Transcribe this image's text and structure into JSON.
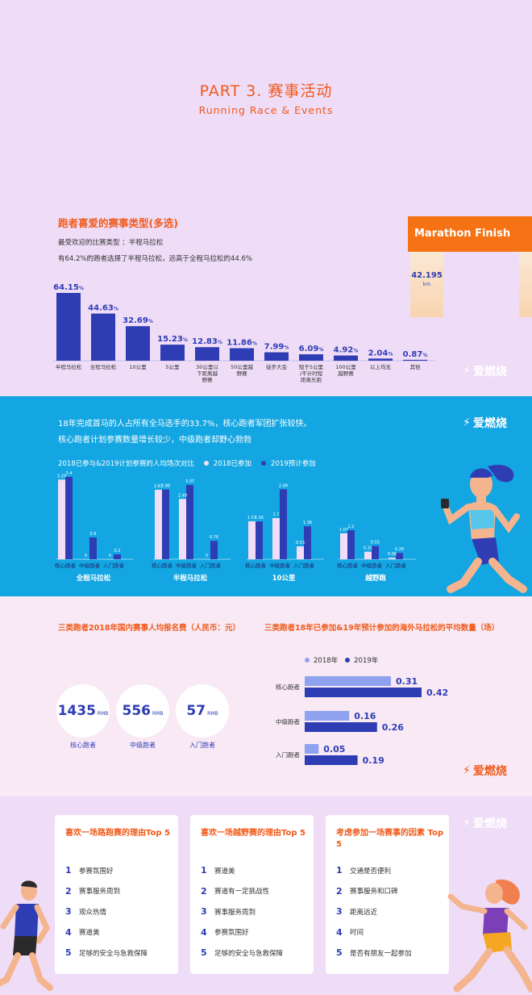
{
  "header": {
    "title": "PART 3. 赛事活动",
    "subtitle": "Running Race & Events"
  },
  "section1": {
    "title": "跑者喜爱的赛事类型(多选)",
    "note1": "最受欢迎的比赛类型  ：半程马拉松",
    "note2": "有64.2%的跑者选择了半程马拉松，远高于全程马拉松的44.6%",
    "sign": {
      "title": "Marathon Finish",
      "distance": "42.195",
      "unit": "km"
    }
  },
  "section2": {
    "text1": "18年完成首马的人占所有全马选手的33.7%，核心跑者军团扩张较快。",
    "text2": "核心跑者计划参赛数量增长较少，中级跑者却野心勃勃",
    "legend_title": "2018已参与&2019计划参赛的人均场次对比",
    "legend_2018": "2018已参加",
    "legend_2019": "2019预计参加"
  },
  "section3": {
    "left_title": "三类跑者2018年国内赛事人均报名费（人民币：元）",
    "right_title": "三类跑者18年已参加&19年预计参加的海外马拉松的平均数量（场）",
    "fees": [
      {
        "value": "1435",
        "unit": "RMB",
        "label": "核心跑者"
      },
      {
        "value": "556",
        "unit": "RMB",
        "label": "中级跑者"
      },
      {
        "value": "57",
        "unit": "RMB",
        "label": "入门跑者"
      }
    ],
    "legend_2018": "2018年",
    "legend_2019": "2019年"
  },
  "section4": {
    "cards": [
      {
        "title": "喜欢一场路跑赛的理由Top 5",
        "items": [
          "参赛氛围好",
          "赛事服务周到",
          "观众热情",
          "赛道美",
          "足够的安全与急救保障"
        ]
      },
      {
        "title": "喜欢一场越野赛的理由Top 5",
        "items": [
          "赛道美",
          "赛道有一定挑战性",
          "赛事服务周到",
          "参赛氛围好",
          "足够的安全与急救保障"
        ]
      },
      {
        "title": "考虑参加一场赛事的因素 Top 5",
        "items": [
          "交通是否便利",
          "赛事服务和口碑",
          "距离远近",
          "时间",
          "是否有朋友一起参加"
        ]
      }
    ]
  },
  "brand": "爱燃烧",
  "colors": {
    "accent": "#f05a1a",
    "bar": "#2f3db4",
    "bar_light": "#f3dcf7",
    "blue_bg": "#13a6e2",
    "light_blue": "#8fa2ef"
  },
  "chart_data": [
    {
      "type": "bar",
      "categories": [
        "半程马拉松",
        "全程马拉松",
        "10公里",
        "5公里",
        "30公里以下距离越野赛",
        "50公里越野赛",
        "徒步大会",
        "短于5公里/不计时短距离乐跑",
        "100公里越野赛",
        "以上均无",
        "其他"
      ],
      "category_lines": [
        [
          "半程马拉松"
        ],
        [
          "全程马拉松"
        ],
        [
          "10公里"
        ],
        [
          "5公里"
        ],
        [
          "30公里以",
          "下距离越",
          "野赛"
        ],
        [
          "50公里越",
          "野赛"
        ],
        [
          "徒步大会"
        ],
        [
          "短于5公里",
          "/不计时短",
          "距离乐跑"
        ],
        [
          "100公里",
          "越野赛"
        ],
        [
          "以上均无"
        ],
        [
          "其他"
        ]
      ],
      "values": [
        64.15,
        44.63,
        32.69,
        15.23,
        12.83,
        11.86,
        7.99,
        6.09,
        4.92,
        2.04,
        0.87
      ],
      "labels": [
        "64.15",
        "44.63",
        "32.69",
        "15.23",
        "12.83",
        "11.86",
        "7.99",
        "6.09",
        "4.92",
        "2.04",
        "0.87"
      ],
      "unit": "%",
      "ylim": [
        0,
        70
      ]
    },
    {
      "type": "bar",
      "groups": [
        {
          "name": "全程马拉松",
          "categories": [
            "核心跑者",
            "中级跑者",
            "入门跑者"
          ],
          "y2018": [
            3.29,
            0,
            0
          ],
          "y2019": [
            3.4,
            0.9,
            0.2
          ],
          "labels2018": [
            "3.29",
            "0",
            "0"
          ],
          "labels2019": [
            "3.4",
            "0.9",
            "0.2"
          ]
        },
        {
          "name": "半程马拉松",
          "categories": [
            "核心跑者",
            "中级跑者",
            "入门跑者"
          ],
          "y2018": [
            2.87,
            2.49,
            0
          ],
          "y2019": [
            2.88,
            3.07,
            0.76
          ],
          "labels2018": [
            "2.87",
            "2.49",
            "0"
          ],
          "labels2019": [
            "2.88",
            "3.07",
            "0.76"
          ]
        },
        {
          "name": "10公里",
          "categories": [
            "核心跑者",
            "中级跑者",
            "入门跑者"
          ],
          "y2018": [
            1.57,
            1.7,
            0.53
          ],
          "y2019": [
            1.56,
            2.89,
            1.36
          ],
          "labels2018": [
            "1.57",
            "1.7",
            "0.53"
          ],
          "labels2019": [
            "1.56",
            "2.89",
            "1.36"
          ]
        },
        {
          "name": "越野跑",
          "categories": [
            "核心跑者",
            "中级跑者",
            "入门跑者"
          ],
          "y2018": [
            1.07,
            0.31,
            0.06
          ],
          "y2019": [
            1.2,
            0.55,
            0.26
          ],
          "labels2018": [
            "1.07",
            "0.31",
            "0.06"
          ],
          "labels2019": [
            "1.2",
            "0.55",
            "0.26"
          ]
        }
      ],
      "series": [
        {
          "name": "2018已参加"
        },
        {
          "name": "2019预计参加"
        }
      ],
      "ylim": [
        0,
        3.5
      ]
    },
    {
      "type": "bar",
      "orientation": "horizontal",
      "categories": [
        "核心跑者",
        "中级跑者",
        "入门跑者"
      ],
      "series": [
        {
          "name": "2018年",
          "values": [
            0.31,
            0.16,
            0.05
          ],
          "labels": [
            "0.31",
            "0.16",
            "0.05"
          ]
        },
        {
          "name": "2019年",
          "values": [
            0.42,
            0.26,
            0.19
          ],
          "labels": [
            "0.42",
            "0.26",
            "0.19"
          ]
        }
      ],
      "xlim": [
        0,
        0.5
      ]
    }
  ]
}
